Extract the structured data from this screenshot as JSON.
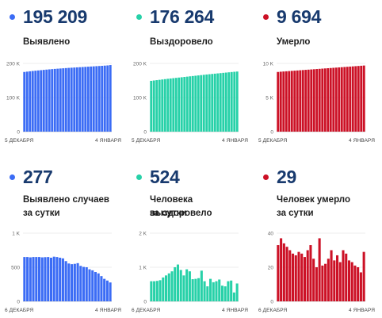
{
  "top": [
    {
      "value": "195 209",
      "label": "Выявлено",
      "color": "#3b6cf5",
      "chart_data": {
        "type": "bar",
        "yticks": [
          {
            "v": 0,
            "t": "0"
          },
          {
            "v": 100000,
            "t": "100 K"
          },
          {
            "v": 200000,
            "t": "200 K"
          }
        ],
        "ylim": [
          0,
          200000
        ],
        "x_start_label": "5 ДЕКАБРЯ",
        "x_end_label": "4 ЯНВАРЯ",
        "values": [
          175000,
          176000,
          177000,
          177900,
          178700,
          179500,
          180300,
          181100,
          181900,
          182600,
          183300,
          184000,
          184600,
          185200,
          185800,
          186400,
          187000,
          187500,
          188000,
          188500,
          189000,
          189500,
          190000,
          190500,
          191000,
          191500,
          192000,
          192500,
          193000,
          193600,
          194200,
          195209
        ]
      }
    },
    {
      "value": "176 264",
      "label": "Выздоровело",
      "color": "#27d1a8",
      "chart_data": {
        "type": "bar",
        "yticks": [
          {
            "v": 0,
            "t": "0"
          },
          {
            "v": 100000,
            "t": "100 K"
          },
          {
            "v": 200000,
            "t": "200 K"
          }
        ],
        "ylim": [
          0,
          200000
        ],
        "x_start_label": "5 ДЕКАБРЯ",
        "x_end_label": "4 ЯНВАРЯ",
        "values": [
          149000,
          150000,
          151000,
          152000,
          153000,
          154000,
          155000,
          155900,
          156800,
          157700,
          158600,
          159500,
          160400,
          161300,
          162200,
          163100,
          164000,
          164900,
          165800,
          166700,
          167600,
          168400,
          169200,
          170000,
          170800,
          171600,
          172400,
          173200,
          174000,
          174800,
          175500,
          176264
        ]
      }
    },
    {
      "value": "9 694",
      "label": "Умерло",
      "color": "#cc1126",
      "chart_data": {
        "type": "bar",
        "yticks": [
          {
            "v": 0,
            "t": "0"
          },
          {
            "v": 5000,
            "t": "5 K"
          },
          {
            "v": 10000,
            "t": "10 K"
          }
        ],
        "ylim": [
          0,
          10000
        ],
        "x_start_label": "5 ДЕКАБРЯ",
        "x_end_label": "4 ЯНВАРЯ",
        "values": [
          8750,
          8790,
          8820,
          8850,
          8880,
          8910,
          8940,
          8970,
          9000,
          9030,
          9060,
          9090,
          9120,
          9150,
          9180,
          9210,
          9240,
          9270,
          9300,
          9330,
          9360,
          9390,
          9420,
          9450,
          9480,
          9510,
          9540,
          9570,
          9600,
          9630,
          9660,
          9694
        ]
      }
    }
  ],
  "bottom": [
    {
      "value": "277",
      "label_line1": "Выявлено случаев",
      "label_line2": "за сутки",
      "color": "#3b6cf5",
      "chart_data": {
        "type": "bar",
        "yticks": [
          {
            "v": 0,
            "t": "0"
          },
          {
            "v": 500,
            "t": "500"
          },
          {
            "v": 1000,
            "t": "1 K"
          }
        ],
        "ylim": [
          0,
          1000
        ],
        "x_start_label": "6 ДЕКАБРЯ",
        "x_end_label": "4 ЯНВАРЯ",
        "values": [
          650,
          650,
          645,
          650,
          650,
          650,
          645,
          648,
          650,
          640,
          655,
          650,
          640,
          630,
          590,
          555,
          545,
          550,
          560,
          520,
          505,
          500,
          470,
          455,
          430,
          410,
          370,
          330,
          305,
          277
        ]
      }
    },
    {
      "value": "524",
      "label_line1": "Человека выздоровело",
      "label_line2": "за сутки",
      "color": "#27d1a8",
      "chart_data": {
        "type": "bar",
        "yticks": [
          {
            "v": 0,
            "t": "0"
          },
          {
            "v": 1000,
            "t": "1 K"
          },
          {
            "v": 2000,
            "t": "2 K"
          }
        ],
        "ylim": [
          0,
          2000
        ],
        "x_start_label": "6 ДЕКАБРЯ",
        "x_end_label": "4 ЯНВАРЯ",
        "values": [
          590,
          590,
          600,
          620,
          700,
          760,
          820,
          880,
          1000,
          1080,
          920,
          760,
          940,
          880,
          650,
          660,
          680,
          900,
          590,
          440,
          660,
          560,
          590,
          640,
          460,
          440,
          590,
          610,
          260,
          524
        ]
      }
    },
    {
      "value": "29",
      "label_line1": "Человек умерло",
      "label_line2": "за сутки",
      "color": "#cc1126",
      "chart_data": {
        "type": "bar",
        "yticks": [
          {
            "v": 0,
            "t": "0"
          },
          {
            "v": 20,
            "t": "20"
          },
          {
            "v": 40,
            "t": "40"
          }
        ],
        "ylim": [
          0,
          40
        ],
        "x_start_label": "6 ДЕКАБРЯ",
        "x_end_label": "4 ЯНВАРЯ",
        "values": [
          33,
          37,
          34,
          32,
          30,
          28,
          27,
          29,
          28,
          26,
          30,
          33,
          25,
          20,
          37,
          21,
          22,
          25,
          30,
          24,
          27,
          23,
          30,
          28,
          24,
          23,
          21,
          20,
          17,
          29
        ]
      }
    }
  ]
}
